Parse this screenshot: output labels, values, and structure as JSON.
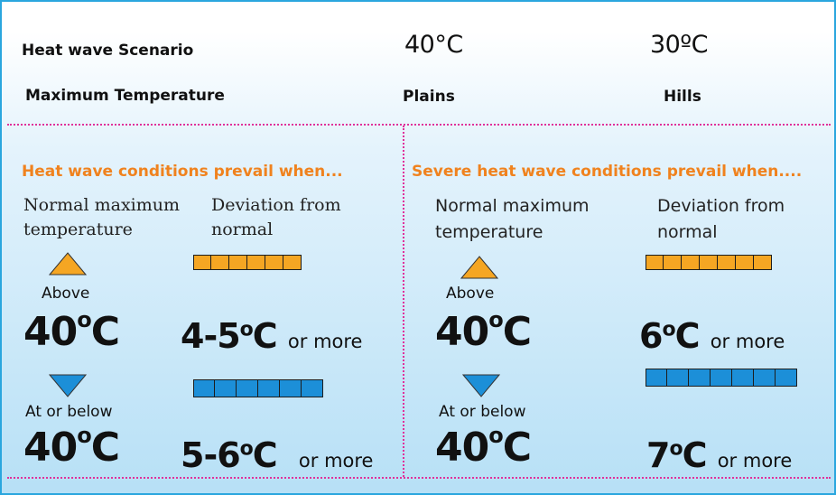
{
  "header": {
    "scenario_label": "Heat wave Scenario",
    "max_temp_label": "Maximum Temperature",
    "plains_temp": "40°C",
    "plains_label": "Plains",
    "hills_temp": "30ºC",
    "hills_label": "Hills"
  },
  "left_panel": {
    "title": "Heat wave conditions prevail when...",
    "normal_label": "Normal maximum temperature",
    "deviation_label": "Deviation from normal",
    "above_label": "Above",
    "above_temp": "40",
    "above_temp_unit": "C",
    "above_deviation": "4-5",
    "above_deviation_unit": "C",
    "below_label": "At or below",
    "below_temp": "40",
    "below_temp_unit": "C",
    "below_deviation": "5-6",
    "below_deviation_unit": "C",
    "or_more": "or more"
  },
  "right_panel": {
    "title": "Severe heat wave conditions prevail when....",
    "normal_label": "Normal maximum temperature",
    "deviation_label": "Deviation from normal",
    "above_label": "Above",
    "above_temp": "40",
    "above_temp_unit": "C",
    "above_deviation": "6",
    "above_deviation_unit": "C",
    "below_label": "At or below",
    "below_temp": "40",
    "below_temp_unit": "C",
    "below_deviation": "7",
    "below_deviation_unit": "C",
    "or_more": "or more"
  },
  "colors": {
    "border": "#2aa6de",
    "divider": "#e0319a",
    "orange": "#f5a623",
    "blue": "#1c8fd8",
    "title_orange": "#f0821e"
  },
  "icons": {
    "above": "triangle-up-icon",
    "below": "triangle-down-icon"
  }
}
